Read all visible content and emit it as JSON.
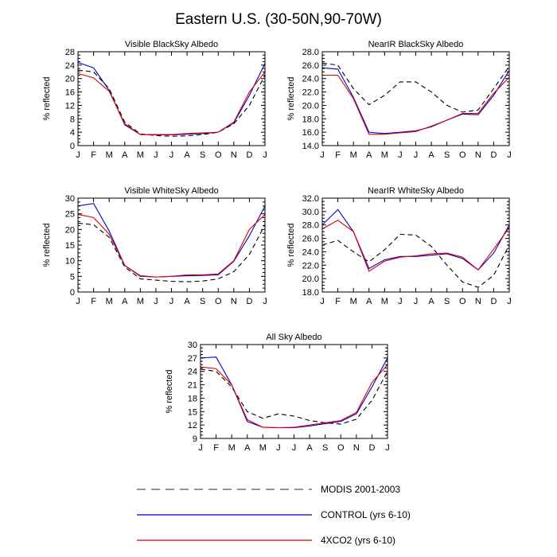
{
  "figure": {
    "title": "Eastern U.S. (30-50N,90-70W)",
    "ylabel": "% reflected"
  },
  "months": [
    "J",
    "F",
    "M",
    "A",
    "M",
    "J",
    "J",
    "A",
    "S",
    "O",
    "N",
    "D",
    "J"
  ],
  "series_styles": [
    {
      "name": "MODIS 2001-2003",
      "color": "#000000",
      "dash": "6,4"
    },
    {
      "name": "CONTROL (yrs 6-10)",
      "color": "#0000cc",
      "dash": ""
    },
    {
      "name": "4XCO2 (yrs 6-10)",
      "color": "#dd0000",
      "dash": ""
    }
  ],
  "legend": {
    "modis_label": "MODIS 2001-2003",
    "control_label": "CONTROL (yrs 6-10)",
    "co2_label": "4XCO2 (yrs 6-10)"
  },
  "chart_data": [
    {
      "type": "line",
      "title": "Visible BlackSky Albedo",
      "xlabel": "",
      "ylabel": "% reflected",
      "categories": [
        "J",
        "F",
        "M",
        "A",
        "M",
        "J",
        "J",
        "A",
        "S",
        "O",
        "N",
        "D",
        "J"
      ],
      "ylim": [
        0,
        28
      ],
      "yticks": [
        0,
        4,
        8,
        12,
        16,
        20,
        24,
        28
      ],
      "ytick_labels": [
        "0",
        "4",
        "8",
        "12",
        "16",
        "20",
        "24",
        "28"
      ],
      "series": [
        {
          "name": "MODIS 2001-2003",
          "values": [
            22.5,
            22.0,
            17.0,
            7.0,
            3.5,
            3.0,
            2.8,
            2.9,
            3.3,
            4.0,
            6.5,
            12.0,
            21.0
          ]
        },
        {
          "name": "CONTROL (yrs 6-10)",
          "values": [
            24.8,
            23.2,
            16.5,
            6.2,
            3.3,
            3.2,
            3.2,
            3.4,
            3.6,
            4.0,
            6.8,
            15.0,
            24.5
          ]
        },
        {
          "name": "4XCO2 (yrs 6-10)",
          "values": [
            21.5,
            20.2,
            16.2,
            6.5,
            3.3,
            3.3,
            3.3,
            3.6,
            3.8,
            4.0,
            7.0,
            16.0,
            22.0
          ]
        }
      ]
    },
    {
      "type": "line",
      "title": "NearIR BlackSky Albedo",
      "xlabel": "",
      "ylabel": "% reflected",
      "categories": [
        "J",
        "F",
        "M",
        "A",
        "M",
        "J",
        "J",
        "A",
        "S",
        "O",
        "N",
        "D",
        "J"
      ],
      "ylim": [
        14,
        28
      ],
      "yticks": [
        14,
        16,
        18,
        20,
        22,
        24,
        26,
        28
      ],
      "ytick_labels": [
        "14.0",
        "16.0",
        "18.0",
        "20.0",
        "22.0",
        "24.0",
        "26.0",
        "28.0"
      ],
      "series": [
        {
          "name": "MODIS 2001-2003",
          "values": [
            26.3,
            26.0,
            22.5,
            20.1,
            21.5,
            23.5,
            23.5,
            22.0,
            20.0,
            19.0,
            19.3,
            22.5,
            25.8
          ]
        },
        {
          "name": "CONTROL (yrs 6-10)",
          "values": [
            25.6,
            25.4,
            21.2,
            16.0,
            15.8,
            16.0,
            16.2,
            16.8,
            17.8,
            18.7,
            18.6,
            21.5,
            25.2
          ]
        },
        {
          "name": "4XCO2 (yrs 6-10)",
          "values": [
            24.5,
            24.5,
            21.0,
            15.7,
            15.7,
            15.9,
            16.1,
            16.9,
            17.8,
            18.8,
            18.8,
            21.8,
            24.2
          ]
        }
      ]
    },
    {
      "type": "line",
      "title": "Visible WhiteSky Albedo",
      "xlabel": "",
      "ylabel": "% reflected",
      "categories": [
        "J",
        "F",
        "M",
        "A",
        "M",
        "J",
        "J",
        "A",
        "S",
        "O",
        "N",
        "D",
        "J"
      ],
      "ylim": [
        0,
        30
      ],
      "yticks": [
        0,
        5,
        10,
        15,
        20,
        25,
        30
      ],
      "ytick_labels": [
        "0",
        "5",
        "10",
        "15",
        "20",
        "25",
        "30"
      ],
      "series": [
        {
          "name": "MODIS 2001-2003",
          "values": [
            22.0,
            21.5,
            17.5,
            8.0,
            4.2,
            3.8,
            3.4,
            3.3,
            3.5,
            4.2,
            6.5,
            12.0,
            21.5
          ]
        },
        {
          "name": "CONTROL (yrs 6-10)",
          "values": [
            27.5,
            28.3,
            19.5,
            8.5,
            5.2,
            4.8,
            5.0,
            5.2,
            5.3,
            5.5,
            9.8,
            18.0,
            27.5
          ]
        },
        {
          "name": "4XCO2 (yrs 6-10)",
          "values": [
            24.8,
            23.8,
            18.5,
            8.5,
            5.0,
            4.8,
            5.0,
            5.5,
            5.5,
            5.8,
            10.0,
            20.0,
            24.8
          ]
        }
      ]
    },
    {
      "type": "line",
      "title": "NearIR WhiteSky Albedo",
      "xlabel": "",
      "ylabel": "% reflected",
      "categories": [
        "J",
        "F",
        "M",
        "A",
        "M",
        "J",
        "J",
        "A",
        "S",
        "O",
        "N",
        "D",
        "J"
      ],
      "ylim": [
        18,
        32
      ],
      "yticks": [
        18,
        20,
        22,
        24,
        26,
        28,
        30,
        32
      ],
      "ytick_labels": [
        "18.0",
        "20.0",
        "22.0",
        "24.0",
        "26.0",
        "28.0",
        "30.0",
        "32.0"
      ],
      "series": [
        {
          "name": "MODIS 2001-2003",
          "values": [
            25.0,
            25.7,
            24.0,
            22.5,
            24.3,
            26.6,
            26.5,
            24.8,
            22.0,
            19.5,
            18.7,
            20.5,
            25.0
          ]
        },
        {
          "name": "CONTROL (yrs 6-10)",
          "values": [
            28.0,
            30.3,
            27.0,
            21.5,
            22.8,
            23.3,
            23.3,
            23.5,
            23.7,
            23.0,
            21.3,
            23.8,
            28.0
          ]
        },
        {
          "name": "4XCO2 (yrs 6-10)",
          "values": [
            27.4,
            28.7,
            27.0,
            21.1,
            22.6,
            23.2,
            23.4,
            23.7,
            23.8,
            23.2,
            21.3,
            24.4,
            27.6
          ]
        }
      ]
    },
    {
      "type": "line",
      "title": "All Sky Albedo",
      "xlabel": "",
      "ylabel": "% reflected",
      "categories": [
        "J",
        "F",
        "M",
        "A",
        "M",
        "J",
        "J",
        "A",
        "S",
        "O",
        "N",
        "D",
        "J"
      ],
      "ylim": [
        9,
        30
      ],
      "yticks": [
        9,
        12,
        15,
        18,
        21,
        24,
        27,
        30
      ],
      "ytick_labels": [
        "9",
        "12",
        "15",
        "18",
        "21",
        "24",
        "27",
        "30"
      ],
      "series": [
        {
          "name": "MODIS 2001-2003",
          "values": [
            24.5,
            24.0,
            20.5,
            15.0,
            13.5,
            14.5,
            14.0,
            13.0,
            12.5,
            12.2,
            13.3,
            17.5,
            24.0
          ]
        },
        {
          "name": "CONTROL (yrs 6-10)",
          "values": [
            27.0,
            27.2,
            21.0,
            12.8,
            11.5,
            11.4,
            11.4,
            11.8,
            12.3,
            12.8,
            14.5,
            20.5,
            27.0
          ]
        },
        {
          "name": "4XCO2 (yrs 6-10)",
          "values": [
            25.0,
            24.6,
            21.0,
            13.2,
            11.5,
            11.4,
            11.5,
            12.0,
            12.5,
            13.0,
            14.8,
            21.5,
            25.5
          ]
        }
      ]
    }
  ]
}
